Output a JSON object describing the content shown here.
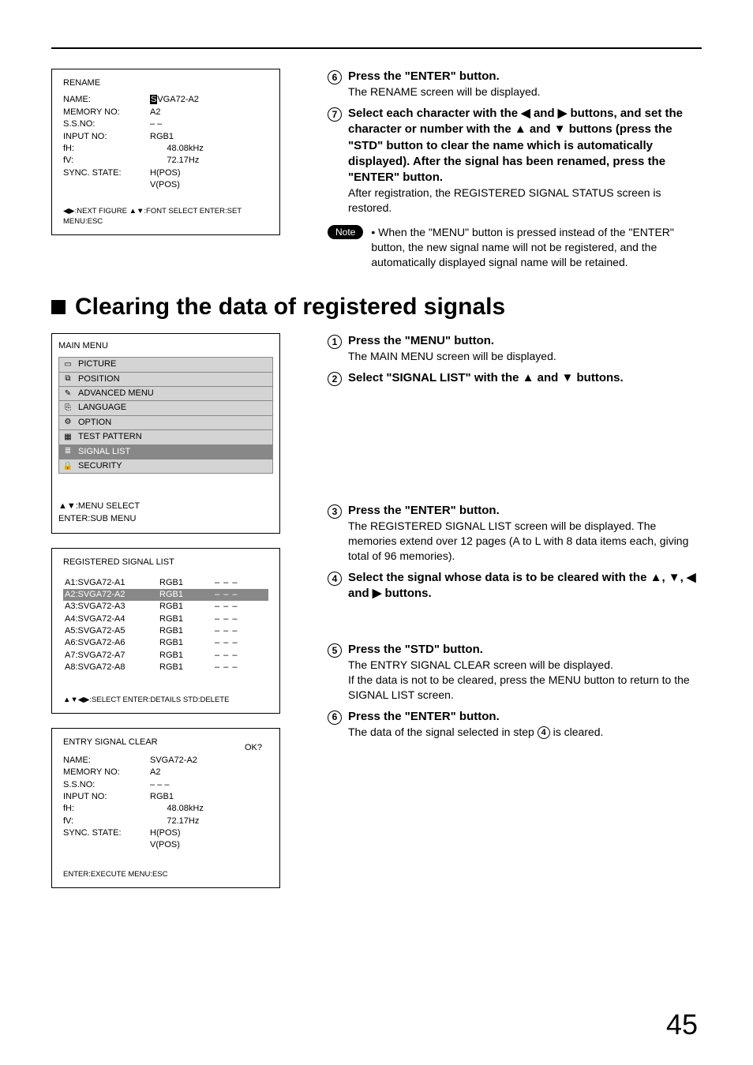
{
  "rename_box": {
    "title": "RENAME",
    "rows": [
      {
        "k": "NAME:",
        "v_pre": "S",
        "v_rest": "VGA72-A2",
        "inv_first": true
      },
      {
        "k": "MEMORY NO:",
        "v": "A2"
      },
      {
        "k": "S.S.NO:",
        "v": "– –"
      },
      {
        "k": "INPUT NO:",
        "v": "RGB1"
      },
      {
        "k": "fH:",
        "v": "       48.08kHz"
      },
      {
        "k": "fV:",
        "v": "       72.17Hz"
      },
      {
        "k": "SYNC. STATE:",
        "v": "H(POS)"
      },
      {
        "k": "",
        "v": "V(POS)"
      }
    ],
    "footer": "◀▶:NEXT FIGURE ▲▼:FONT SELECT   ENTER:SET   MENU:ESC"
  },
  "right_top": {
    "steps": [
      {
        "n": "6",
        "hd": "Press the \"ENTER\" button.",
        "sub": "The RENAME screen will be displayed."
      },
      {
        "n": "7",
        "hd": "Select each character with the ◀ and ▶ buttons, and set the character or number with the ▲ and ▼ buttons (press the \"STD\" button to clear the name which is automatically displayed).  After the signal has been renamed, press the \"ENTER\" button.",
        "sub": "After registration, the REGISTERED SIGNAL STATUS screen is restored."
      }
    ],
    "note_label": "Note",
    "note_text": "• When the \"MENU\" button is pressed instead of the \"ENTER\" button, the new signal name will not be registered, and the automatically displayed signal name will be retained."
  },
  "section_title": "Clearing the data of registered signals",
  "main_menu": {
    "title": "MAIN MENU",
    "items": [
      {
        "icon": "▭",
        "label": "PICTURE"
      },
      {
        "icon": "⧉",
        "label": "POSITION"
      },
      {
        "icon": "✎",
        "label": "ADVANCED MENU"
      },
      {
        "icon": "⎘",
        "label": "LANGUAGE"
      },
      {
        "icon": "⚙",
        "label": "OPTION"
      },
      {
        "icon": "▦",
        "label": "TEST PATTERN"
      },
      {
        "icon": "≣",
        "label": "SIGNAL LIST",
        "sel": true
      },
      {
        "icon": "🔒",
        "label": "SECURITY"
      }
    ],
    "footer1": "▲▼:MENU SELECT",
    "footer2": "ENTER:SUB MENU"
  },
  "signal_list": {
    "title": "REGISTERED SIGNAL LIST",
    "rows": [
      {
        "c1": "A1:SVGA72-A1",
        "c2": "RGB1",
        "c3": "– – –"
      },
      {
        "c1": "A2:SVGA72-A2",
        "c2": "RGB1",
        "c3": "– – –",
        "sel": true
      },
      {
        "c1": "A3:SVGA72-A3",
        "c2": "RGB1",
        "c3": "– – –"
      },
      {
        "c1": "A4:SVGA72-A4",
        "c2": "RGB1",
        "c3": "– – –"
      },
      {
        "c1": "A5:SVGA72-A5",
        "c2": "RGB1",
        "c3": "– – –"
      },
      {
        "c1": "A6:SVGA72-A6",
        "c2": "RGB1",
        "c3": "– – –"
      },
      {
        "c1": "A7:SVGA72-A7",
        "c2": "RGB1",
        "c3": "– – –"
      },
      {
        "c1": "A8:SVGA72-A8",
        "c2": "RGB1",
        "c3": "– – –"
      }
    ],
    "footer": "▲▼◀▶:SELECT  ENTER:DETAILS  STD:DELETE"
  },
  "clear_box": {
    "title": "ENTRY SIGNAL CLEAR",
    "ok": "OK?",
    "rows": [
      {
        "k": "NAME:",
        "v": "SVGA72-A2"
      },
      {
        "k": "MEMORY NO:",
        "v": "A2"
      },
      {
        "k": "S.S.NO:",
        "v": "– – –"
      },
      {
        "k": "INPUT NO:",
        "v": "RGB1"
      },
      {
        "k": "fH:",
        "v": "       48.08kHz"
      },
      {
        "k": "fV:",
        "v": "       72.17Hz"
      },
      {
        "k": "SYNC. STATE:",
        "v": "H(POS)"
      },
      {
        "k": "",
        "v": "V(POS)"
      }
    ],
    "footer": "ENTER:EXECUTE   MENU:ESC"
  },
  "right_section": {
    "block1": [
      {
        "n": "1",
        "hd": "Press the \"MENU\" button.",
        "sub": "The MAIN MENU screen will be displayed."
      },
      {
        "n": "2",
        "hd": "Select \"SIGNAL LIST\" with the ▲ and ▼ buttons.",
        "sub": ""
      }
    ],
    "block2": [
      {
        "n": "3",
        "hd": "Press the \"ENTER\" button.",
        "sub": "The REGISTERED SIGNAL LIST screen will be displayed.  The memories extend over 12 pages (A to L with 8 data items each, giving total of 96 memories)."
      },
      {
        "n": "4",
        "hd": "Select the signal whose data is to be cleared with the ▲, ▼, ◀ and ▶ buttons.",
        "sub": ""
      }
    ],
    "block3": [
      {
        "n": "5",
        "hd": "Press the \"STD\" button.",
        "sub": "The ENTRY SIGNAL CLEAR screen will be displayed.\nIf the data is not to be cleared, press the MENU button to return to the SIGNAL LIST screen."
      },
      {
        "n": "6",
        "hd": "Press the \"ENTER\" button.",
        "sub_pre": "The data of the signal selected in step ",
        "sub_num": "4",
        "sub_post": " is cleared."
      }
    ]
  },
  "page_number": "45"
}
